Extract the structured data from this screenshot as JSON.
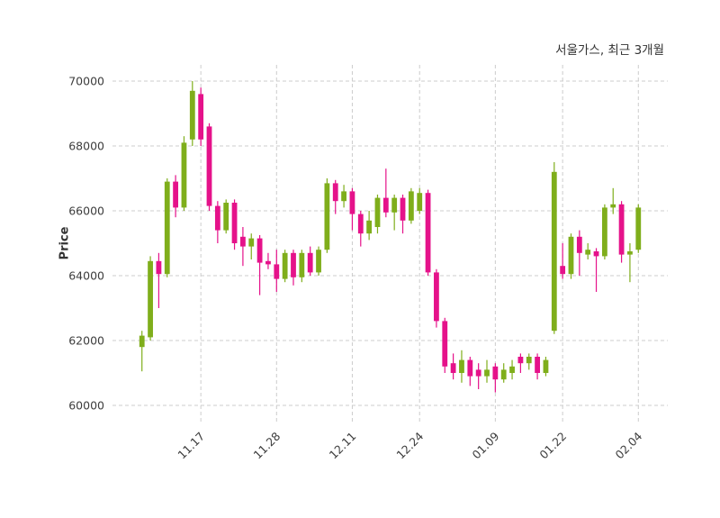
{
  "chart_data": {
    "type": "candlestick",
    "title": "서울가스, 최근 3개월",
    "ylabel": "Price",
    "xlabel": "",
    "ylim": [
      59500,
      70500
    ],
    "yticks": [
      60000,
      62000,
      64000,
      66000,
      68000,
      70000
    ],
    "ytick_labels": [
      "60000",
      "62000",
      "64000",
      "66000",
      "68000",
      "70000"
    ],
    "xtick_indices": [
      7,
      16,
      25,
      33,
      42,
      50,
      59
    ],
    "xtick_labels": [
      "11.17",
      "11.28",
      "12.11",
      "12.24",
      "01.09",
      "01.22",
      "02.04"
    ],
    "grid": "dashed-both-axes",
    "legend": "none",
    "colors": {
      "up": "#7fae1b",
      "down": "#e5128a",
      "grid": "#cccccc",
      "text": "#3d3d3d",
      "background": "#ffffff"
    },
    "ohlc_order": "open,high,low,close",
    "candles": [
      [
        61800,
        62300,
        61050,
        62150
      ],
      [
        62100,
        64600,
        62000,
        64450
      ],
      [
        64450,
        64700,
        63000,
        64050
      ],
      [
        64050,
        67000,
        63950,
        66900
      ],
      [
        66900,
        67100,
        65800,
        66100
      ],
      [
        66100,
        68300,
        66000,
        68100
      ],
      [
        68200,
        70000,
        68000,
        69700
      ],
      [
        69600,
        69800,
        68000,
        68200
      ],
      [
        68600,
        68700,
        66000,
        66150
      ],
      [
        66150,
        66300,
        65000,
        65400
      ],
      [
        65400,
        66350,
        65300,
        66250
      ],
      [
        66250,
        66350,
        64800,
        65000
      ],
      [
        65200,
        65500,
        64300,
        64900
      ],
      [
        64900,
        65300,
        64500,
        65150
      ],
      [
        65150,
        65250,
        63400,
        64400
      ],
      [
        64450,
        64700,
        64200,
        64350
      ],
      [
        64350,
        64800,
        63500,
        63900
      ],
      [
        63900,
        64800,
        63800,
        64700
      ],
      [
        64700,
        64800,
        63700,
        63950
      ],
      [
        63950,
        64800,
        63800,
        64700
      ],
      [
        64700,
        64900,
        64000,
        64100
      ],
      [
        64100,
        64900,
        64000,
        64800
      ],
      [
        64800,
        67000,
        64700,
        66850
      ],
      [
        66850,
        66950,
        65900,
        66300
      ],
      [
        66300,
        66800,
        66100,
        66600
      ],
      [
        66600,
        66700,
        65400,
        65900
      ],
      [
        65900,
        66000,
        64900,
        65300
      ],
      [
        65300,
        66000,
        65100,
        65700
      ],
      [
        65500,
        66500,
        65300,
        66400
      ],
      [
        66400,
        67300,
        65800,
        65950
      ],
      [
        65950,
        66500,
        65400,
        66400
      ],
      [
        66400,
        66500,
        65300,
        65700
      ],
      [
        65700,
        66700,
        65600,
        66600
      ],
      [
        66000,
        66700,
        65900,
        66550
      ],
      [
        66550,
        66650,
        64000,
        64100
      ],
      [
        64100,
        64200,
        62400,
        62600
      ],
      [
        62600,
        62700,
        61000,
        61200
      ],
      [
        61300,
        61600,
        60800,
        61000
      ],
      [
        61000,
        61700,
        60700,
        61400
      ],
      [
        61400,
        61500,
        60600,
        60900
      ],
      [
        61100,
        61300,
        60500,
        60900
      ],
      [
        60900,
        61400,
        60700,
        61100
      ],
      [
        61200,
        61300,
        60400,
        60800
      ],
      [
        60800,
        61300,
        60700,
        61100
      ],
      [
        61000,
        61400,
        60800,
        61200
      ],
      [
        61500,
        61600,
        61000,
        61300
      ],
      [
        61300,
        61600,
        61100,
        61500
      ],
      [
        61500,
        61600,
        60800,
        61000
      ],
      [
        61000,
        61500,
        60900,
        61400
      ],
      [
        62300,
        67500,
        62200,
        67200
      ],
      [
        64300,
        65000,
        63900,
        64050
      ],
      [
        64050,
        65300,
        63900,
        65200
      ],
      [
        65200,
        65400,
        64000,
        64700
      ],
      [
        64650,
        65000,
        64500,
        64800
      ],
      [
        64750,
        64850,
        63500,
        64600
      ],
      [
        64600,
        66200,
        64500,
        66100
      ],
      [
        66100,
        66700,
        65900,
        66200
      ],
      [
        66200,
        66300,
        64400,
        64650
      ],
      [
        64650,
        65000,
        63800,
        64750
      ],
      [
        64800,
        66200,
        64700,
        66100
      ]
    ]
  }
}
